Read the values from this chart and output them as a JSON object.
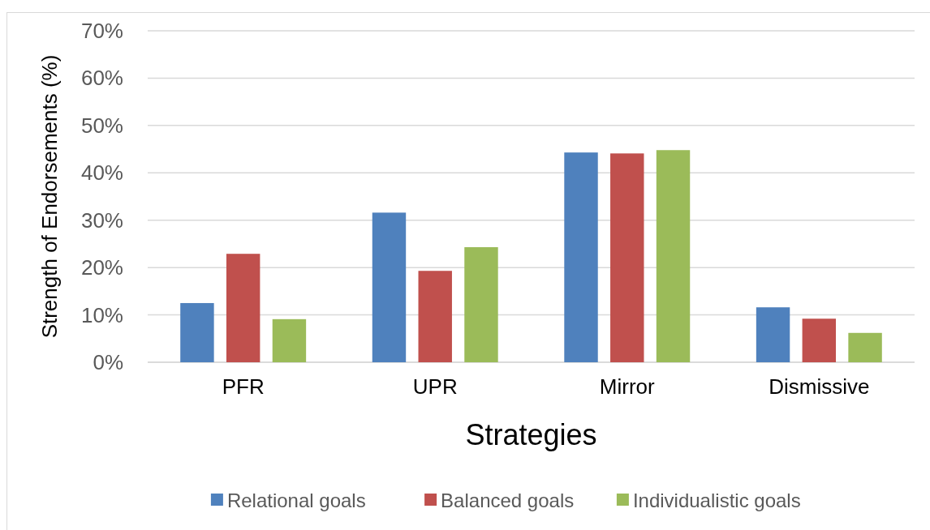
{
  "chart_data": {
    "type": "bar",
    "xlabel": "Strategies",
    "ylabel": "Strength of Endorsements (%)",
    "categories": [
      "PFR",
      "UPR",
      "Mirror",
      "Dismissive"
    ],
    "series": [
      {
        "name": "Relational goals",
        "color": "#4f81bd",
        "values": [
          12.5,
          31.6,
          44.3,
          11.6
        ]
      },
      {
        "name": "Balanced goals",
        "color": "#c0504d",
        "values": [
          22.9,
          19.3,
          44.1,
          9.2
        ]
      },
      {
        "name": "Individualistic goals",
        "color": "#9bbb59",
        "values": [
          9.1,
          24.3,
          44.8,
          6.2
        ]
      }
    ],
    "ylim": [
      0,
      70
    ],
    "yticks": [
      {
        "value": 0,
        "label": "0%"
      },
      {
        "value": 10,
        "label": "10%"
      },
      {
        "value": 20,
        "label": "20%"
      },
      {
        "value": 30,
        "label": "30%"
      },
      {
        "value": 40,
        "label": "40%"
      },
      {
        "value": 50,
        "label": "50%"
      },
      {
        "value": 60,
        "label": "60%"
      },
      {
        "value": 70,
        "label": "70%"
      }
    ],
    "grid": "y",
    "legend": "bottom"
  }
}
